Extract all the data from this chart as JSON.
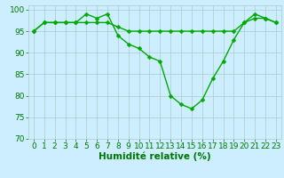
{
  "title": "",
  "xlabel": "Humidité relative (%)",
  "ylabel": "",
  "background_color": "#cceeff",
  "grid_color": "#aacccc",
  "line_color": "#00aa00",
  "marker_color": "#00aa00",
  "ylim": [
    70,
    101
  ],
  "xlim": [
    -0.5,
    23.5
  ],
  "yticks": [
    70,
    75,
    80,
    85,
    90,
    95,
    100
  ],
  "xticks": [
    0,
    1,
    2,
    3,
    4,
    5,
    6,
    7,
    8,
    9,
    10,
    11,
    12,
    13,
    14,
    15,
    16,
    17,
    18,
    19,
    20,
    21,
    22,
    23
  ],
  "line1_x": [
    0,
    1,
    2,
    3,
    4,
    5,
    6,
    7,
    8,
    9,
    10,
    11,
    12,
    13,
    14,
    15,
    16,
    17,
    18,
    19,
    20,
    21,
    22,
    23
  ],
  "line1_y": [
    95,
    97,
    97,
    97,
    97,
    99,
    98,
    99,
    94,
    92,
    91,
    89,
    88,
    80,
    78,
    77,
    79,
    84,
    88,
    93,
    97,
    99,
    98,
    97
  ],
  "line2_x": [
    0,
    1,
    2,
    3,
    4,
    5,
    6,
    7,
    8,
    9,
    10,
    11,
    12,
    13,
    14,
    15,
    16,
    17,
    18,
    19,
    20,
    21,
    22,
    23
  ],
  "line2_y": [
    95,
    97,
    97,
    97,
    97,
    97,
    97,
    97,
    96,
    95,
    95,
    95,
    95,
    95,
    95,
    95,
    95,
    95,
    95,
    95,
    97,
    98,
    98,
    97
  ],
  "xlabel_fontsize": 7.5,
  "tick_fontsize": 6.5,
  "xlabel_color": "#007700",
  "tick_color": "#007700",
  "linewidth": 1.0,
  "markersize": 2.5,
  "figwidth": 3.2,
  "figheight": 2.0,
  "dpi": 100
}
